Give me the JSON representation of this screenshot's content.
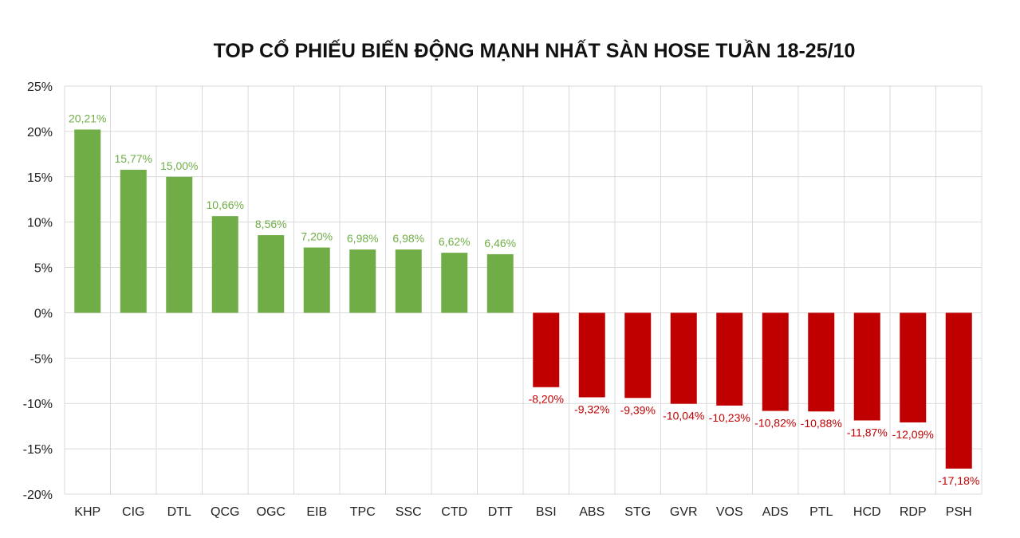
{
  "chart_data": {
    "type": "bar",
    "title": "TOP CỔ PHIẾU BIẾN ĐỘNG MẠNH NHẤT SÀN HOSE TUẦN 18-25/10",
    "xlabel": "",
    "ylabel": "",
    "ylim": [
      -20,
      25
    ],
    "yticks": [
      "25%",
      "20%",
      "15%",
      "10%",
      "5%",
      "0%",
      "-5%",
      "-10%",
      "-15%",
      "-20%"
    ],
    "grid": true,
    "categories": [
      "KHP",
      "CIG",
      "DTL",
      "QCG",
      "OGC",
      "EIB",
      "TPC",
      "SSC",
      "CTD",
      "DTT",
      "BSI",
      "ABS",
      "STG",
      "GVR",
      "VOS",
      "ADS",
      "PTL",
      "HCD",
      "RDP",
      "PSH"
    ],
    "values": [
      20.21,
      15.77,
      15.0,
      10.66,
      8.56,
      7.2,
      6.98,
      6.98,
      6.62,
      6.46,
      -8.2,
      -9.32,
      -9.39,
      -10.04,
      -10.23,
      -10.82,
      -10.88,
      -11.87,
      -12.09,
      -17.18
    ],
    "data_labels": [
      "20,21%",
      "15,77%",
      "15,00%",
      "10,66%",
      "8,56%",
      "7,20%",
      "6,98%",
      "6,98%",
      "6,62%",
      "6,46%",
      "-8,20%",
      "-9,32%",
      "-9,39%",
      "-10,04%",
      "-10,23%",
      "-10,82%",
      "-10,88%",
      "-11,87%",
      "-12,09%",
      "-17,18%"
    ],
    "colors": {
      "positive": "#70ad47",
      "negative": "#c00000"
    }
  }
}
